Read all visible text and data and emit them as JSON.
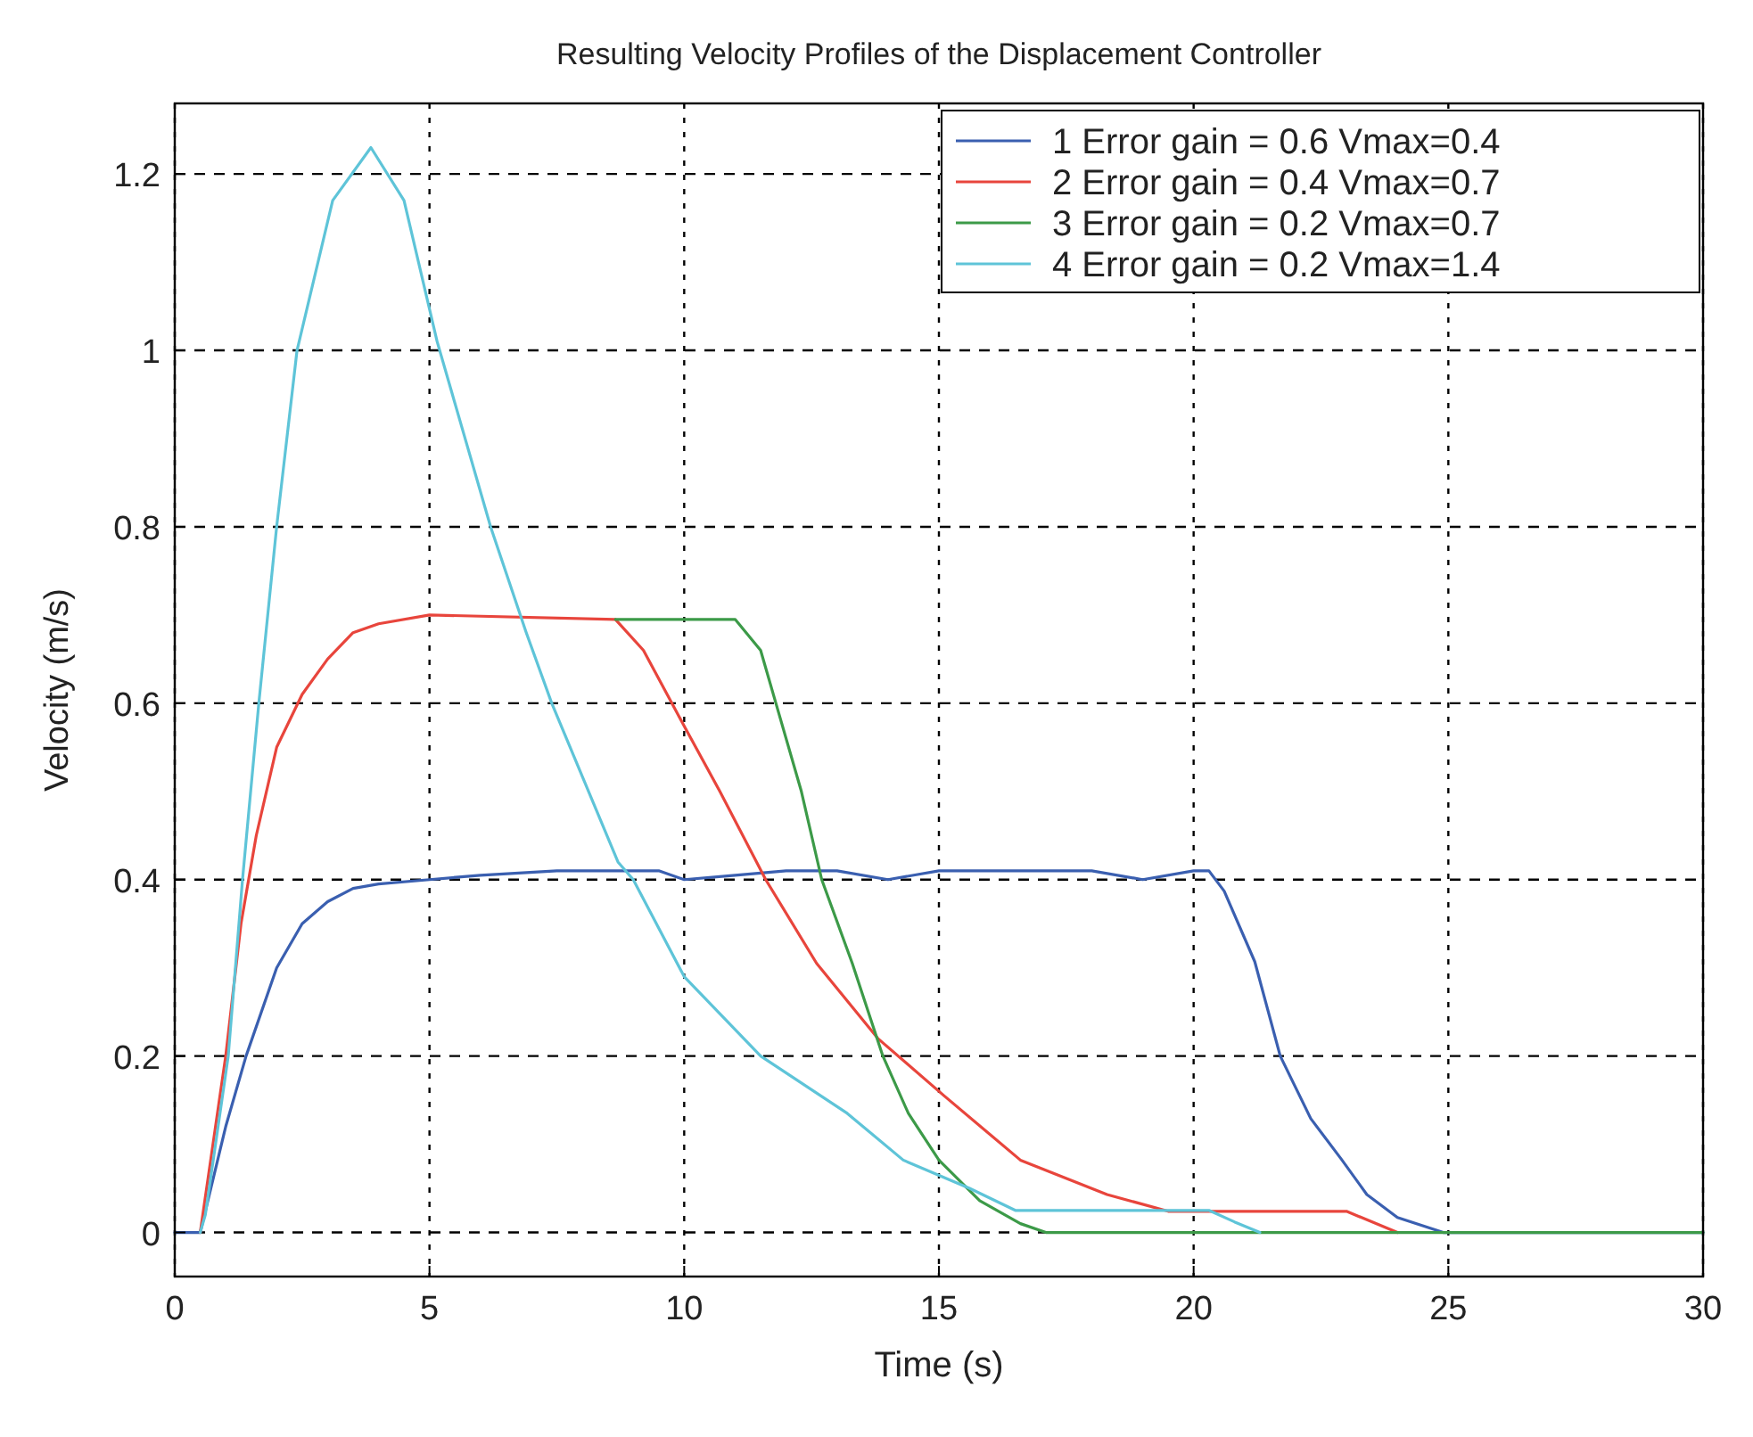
{
  "chart_data": {
    "type": "line",
    "title": "Resulting Velocity  Profiles of the Displacement Controller",
    "xlabel": "Time (s)",
    "ylabel": "Velocity (m/s)",
    "xlim": [
      0,
      30
    ],
    "ylim": [
      -0.05,
      1.28
    ],
    "xticks": [
      0,
      5,
      10,
      15,
      20,
      25,
      30
    ],
    "yticks": [
      0,
      0.2,
      0.4,
      0.6,
      0.8,
      1,
      1.2
    ],
    "grid": true,
    "legend": "top right",
    "marker": "none",
    "line_style": "solid",
    "series": [
      {
        "name": "1 Error gain = 0.6 Vmax=0.4",
        "color": "#3a5fb0",
        "x": [
          0,
          0.5,
          1,
          1.4,
          2,
          2.5,
          3,
          3.5,
          4,
          5,
          6,
          7.5,
          9.5,
          10,
          11,
          12,
          13,
          14,
          15,
          17,
          18,
          19,
          20,
          20.3,
          20.6,
          21.2,
          21.7,
          22.3,
          22.9,
          23.4,
          24,
          24.9,
          30
        ],
        "values": [
          0,
          0,
          0.12,
          0.2,
          0.3,
          0.35,
          0.375,
          0.39,
          0.395,
          0.4,
          0.405,
          0.41,
          0.41,
          0.4,
          0.405,
          0.41,
          0.41,
          0.4,
          0.41,
          0.41,
          0.41,
          0.4,
          0.41,
          0.41,
          0.387,
          0.307,
          0.2,
          0.129,
          0.083,
          0.043,
          0.017,
          0,
          0
        ]
      },
      {
        "name": "2 Error gain = 0.4 Vmax=0.7",
        "color": "#e8453c",
        "x": [
          0.5,
          0.8,
          1,
          1.3,
          1.6,
          2,
          2.5,
          3,
          3.5,
          4,
          5,
          8.65,
          9.2,
          10,
          10.7,
          11.6,
          12.6,
          13.8,
          15.1,
          16.6,
          18.3,
          19.5,
          23,
          24
        ],
        "values": [
          0,
          0.12,
          0.2,
          0.35,
          0.45,
          0.55,
          0.61,
          0.65,
          0.68,
          0.69,
          0.7,
          0.695,
          0.66,
          0.574,
          0.5,
          0.4,
          0.305,
          0.22,
          0.155,
          0.082,
          0.043,
          0.024,
          0.024,
          0
        ]
      },
      {
        "name": "3 Error gain = 0.2 Vmax=0.7",
        "color": "#3c9a48",
        "x": [
          8.65,
          11,
          11.5,
          11.8,
          12.3,
          12.7,
          13.3,
          13.9,
          14.4,
          15,
          15.8,
          16.6,
          17.1,
          30
        ],
        "values": [
          0.695,
          0.695,
          0.66,
          0.6,
          0.5,
          0.4,
          0.305,
          0.2,
          0.135,
          0.082,
          0.036,
          0.01,
          0,
          0
        ]
      },
      {
        "name": "4 Error gain = 0.2 Vmax=1.4",
        "color": "#5ec4d8",
        "x": [
          0.5,
          0.6,
          1.05,
          1.33,
          1.65,
          2,
          2.4,
          3.1,
          3.85,
          4.5,
          5.15,
          6.2,
          6.9,
          7.4,
          8.7,
          9,
          10,
          11.5,
          13.2,
          14.3,
          15.6,
          16.5,
          20.3,
          20.8,
          21.3
        ],
        "values": [
          0,
          0.02,
          0.2,
          0.4,
          0.6,
          0.8,
          1,
          1.17,
          1.23,
          1.17,
          1.01,
          0.8,
          0.68,
          0.6,
          0.42,
          0.4,
          0.29,
          0.2,
          0.135,
          0.082,
          0.05,
          0.025,
          0.025,
          0.012,
          0
        ]
      }
    ]
  }
}
